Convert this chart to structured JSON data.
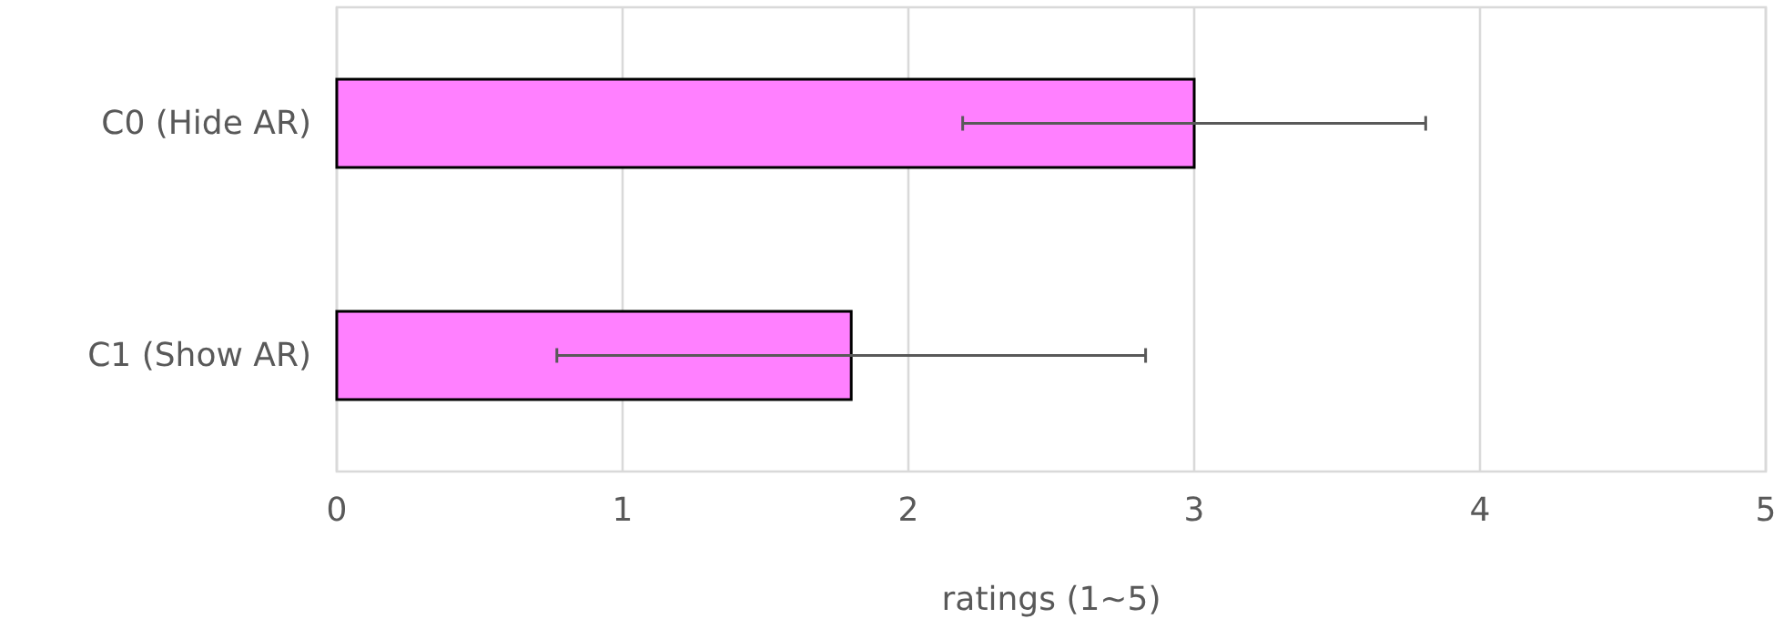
{
  "chart_data": {
    "type": "bar",
    "orientation": "horizontal",
    "categories": [
      "C0 (Hide AR)",
      "C1 (Show AR)"
    ],
    "series": [
      {
        "color": "#ff80ff",
        "values": [
          3.0,
          1.8
        ],
        "errors": [
          0.81,
          1.03
        ]
      }
    ],
    "xlabel": "ratings (1~5)",
    "xlim": [
      0,
      5
    ],
    "xticks": [
      0,
      1,
      2,
      3,
      4,
      5
    ],
    "grid": "x"
  }
}
